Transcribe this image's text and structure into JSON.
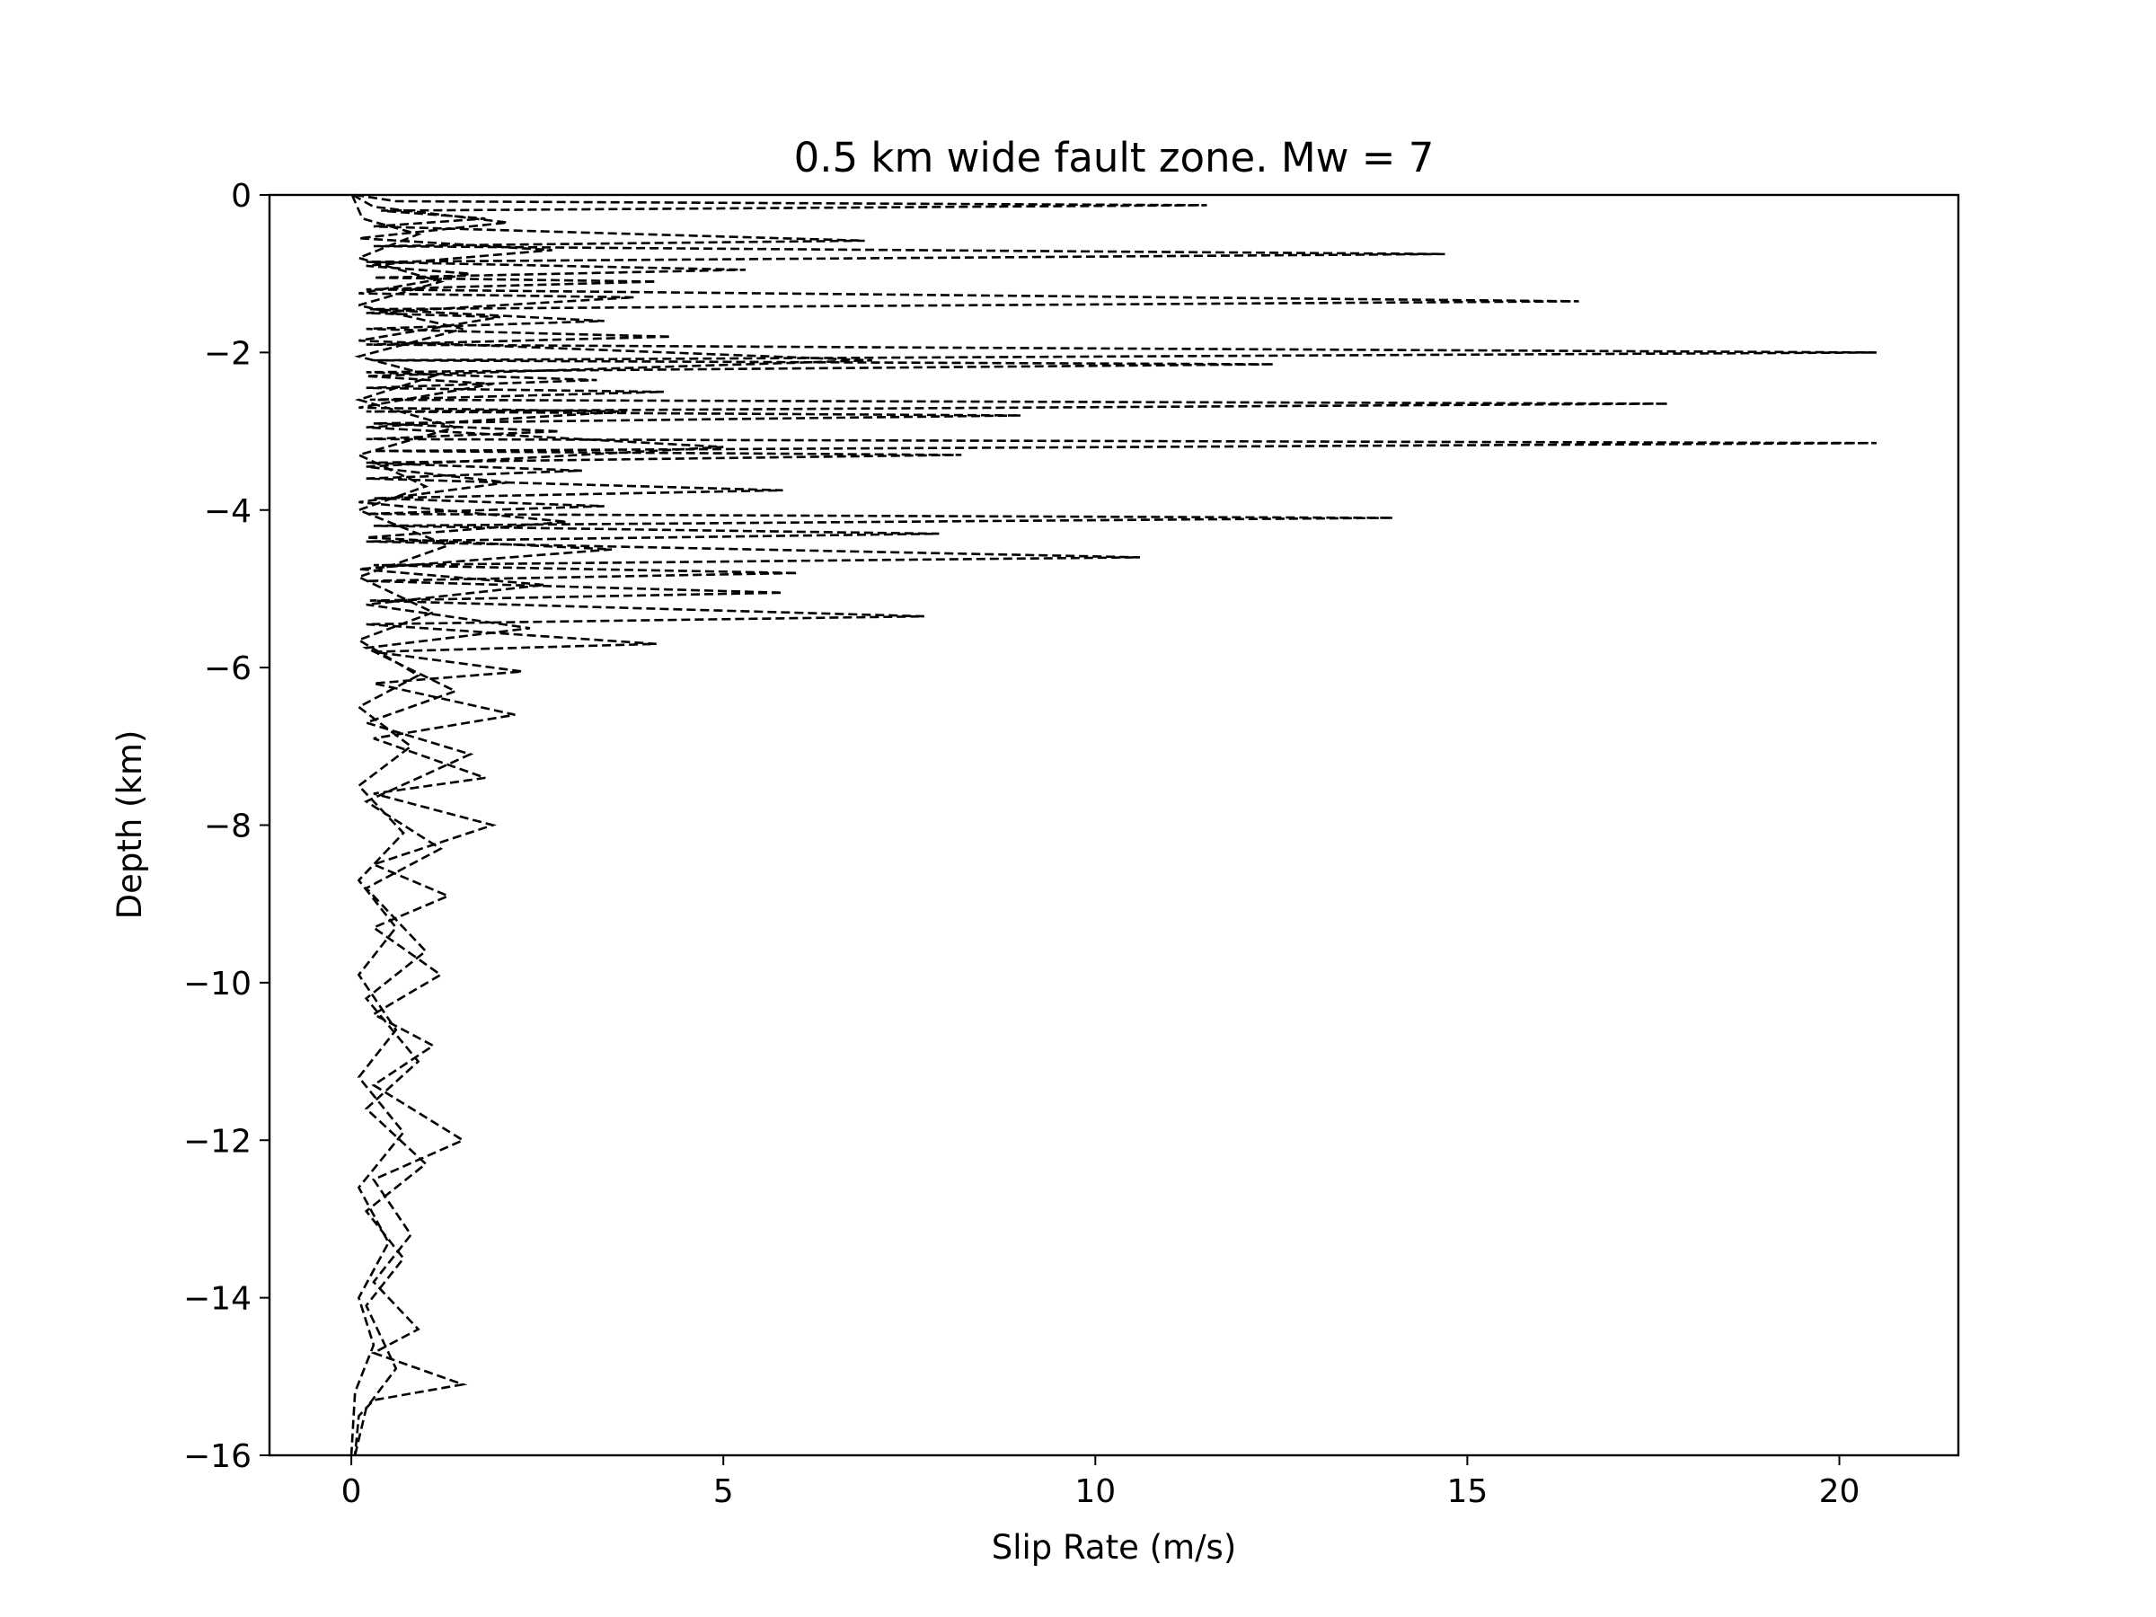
{
  "chart_data": {
    "type": "line",
    "title": "0.5 km wide fault zone. Mw = 7",
    "xlabel": "Slip Rate (m/s)",
    "ylabel": "Depth (km)",
    "xlim": [
      -1.1,
      21.6
    ],
    "ylim": [
      -16,
      0
    ],
    "xticks": [
      0,
      5,
      10,
      15,
      20
    ],
    "yticks": [
      0,
      -2,
      -4,
      -6,
      -8,
      -10,
      -12,
      -14,
      -16
    ],
    "grid": false,
    "legend": "none",
    "line_style": "dashed",
    "line_color": "#000000",
    "series_count_note": "",
    "series": [
      {
        "values": [
          [
            0.05,
            0
          ],
          [
            0.6,
            -0.08
          ],
          [
            11.5,
            -0.13
          ],
          [
            0.4,
            -0.2
          ],
          [
            1.8,
            -0.3
          ],
          [
            0.3,
            -0.4
          ],
          [
            6.9,
            -0.58
          ],
          [
            0.3,
            -0.65
          ],
          [
            14.7,
            -0.75
          ],
          [
            0.2,
            -0.85
          ],
          [
            5.3,
            -0.95
          ],
          [
            0.3,
            -1.05
          ],
          [
            4.1,
            -1.1
          ],
          [
            0.2,
            -1.2
          ],
          [
            16.5,
            -1.35
          ],
          [
            0.25,
            -1.45
          ],
          [
            3.4,
            -1.6
          ],
          [
            0.2,
            -1.7
          ],
          [
            4.3,
            -1.8
          ],
          [
            0.2,
            -1.9
          ],
          [
            20.5,
            -2.0
          ],
          [
            0.3,
            -2.1
          ],
          [
            12.4,
            -2.15
          ],
          [
            0.2,
            -2.25
          ],
          [
            3.3,
            -2.35
          ],
          [
            0.2,
            -2.45
          ],
          [
            4.2,
            -2.5
          ],
          [
            0.25,
            -2.6
          ],
          [
            17.7,
            -2.65
          ],
          [
            0.2,
            -2.75
          ],
          [
            9.0,
            -2.8
          ],
          [
            0.3,
            -2.9
          ],
          [
            2.8,
            -3.0
          ],
          [
            0.2,
            -3.1
          ],
          [
            20.5,
            -3.15
          ],
          [
            0.3,
            -3.25
          ],
          [
            8.2,
            -3.3
          ],
          [
            0.2,
            -3.4
          ],
          [
            3.1,
            -3.5
          ],
          [
            0.2,
            -3.6
          ],
          [
            5.8,
            -3.75
          ],
          [
            0.3,
            -3.85
          ],
          [
            3.4,
            -3.95
          ],
          [
            0.2,
            -4.05
          ],
          [
            14.0,
            -4.1
          ],
          [
            0.3,
            -4.2
          ],
          [
            7.9,
            -4.3
          ],
          [
            0.2,
            -4.4
          ],
          [
            10.6,
            -4.6
          ],
          [
            0.3,
            -4.7
          ],
          [
            6.0,
            -4.8
          ],
          [
            0.2,
            -4.9
          ],
          [
            5.8,
            -5.05
          ],
          [
            0.25,
            -5.15
          ],
          [
            7.7,
            -5.35
          ],
          [
            0.2,
            -5.45
          ],
          [
            4.1,
            -5.7
          ],
          [
            0.3,
            -5.8
          ],
          [
            2.3,
            -6.05
          ],
          [
            0.3,
            -6.2
          ],
          [
            2.2,
            -6.6
          ],
          [
            0.3,
            -6.9
          ],
          [
            1.8,
            -7.4
          ],
          [
            0.3,
            -7.6
          ],
          [
            1.9,
            -8.0
          ],
          [
            0.3,
            -8.5
          ],
          [
            1.3,
            -8.9
          ],
          [
            0.3,
            -9.3
          ],
          [
            1.2,
            -9.9
          ],
          [
            0.3,
            -10.4
          ],
          [
            1.1,
            -10.8
          ],
          [
            0.3,
            -11.3
          ],
          [
            1.5,
            -12.0
          ],
          [
            0.3,
            -12.5
          ],
          [
            0.8,
            -13.2
          ],
          [
            0.3,
            -13.8
          ],
          [
            0.9,
            -14.4
          ],
          [
            0.3,
            -14.7
          ],
          [
            1.5,
            -15.1
          ],
          [
            0.3,
            -15.3
          ],
          [
            0.1,
            -15.5
          ],
          [
            0.05,
            -16
          ]
        ]
      },
      {
        "values": [
          [
            0.02,
            0
          ],
          [
            0.3,
            -0.15
          ],
          [
            2.1,
            -0.35
          ],
          [
            0.1,
            -0.55
          ],
          [
            2.7,
            -0.7
          ],
          [
            0.2,
            -0.9
          ],
          [
            1.6,
            -1.0
          ],
          [
            0.1,
            -1.25
          ],
          [
            3.8,
            -1.3
          ],
          [
            0.2,
            -1.5
          ],
          [
            2.0,
            -1.55
          ],
          [
            0.1,
            -1.85
          ],
          [
            7.0,
            -2.1
          ],
          [
            0.2,
            -2.3
          ],
          [
            1.9,
            -2.4
          ],
          [
            0.1,
            -2.7
          ],
          [
            3.7,
            -2.75
          ],
          [
            0.2,
            -2.95
          ],
          [
            5.0,
            -3.2
          ],
          [
            0.2,
            -3.45
          ],
          [
            2.1,
            -3.65
          ],
          [
            0.1,
            -3.9
          ],
          [
            2.9,
            -4.15
          ],
          [
            0.2,
            -4.35
          ],
          [
            3.5,
            -4.5
          ],
          [
            0.1,
            -4.75
          ],
          [
            2.6,
            -4.95
          ],
          [
            0.2,
            -5.2
          ],
          [
            2.4,
            -5.5
          ],
          [
            0.2,
            -5.75
          ],
          [
            1.4,
            -6.3
          ],
          [
            0.2,
            -6.7
          ],
          [
            1.6,
            -7.1
          ],
          [
            0.2,
            -7.7
          ],
          [
            1.2,
            -8.3
          ],
          [
            0.2,
            -8.8
          ],
          [
            1.0,
            -9.6
          ],
          [
            0.2,
            -10.2
          ],
          [
            0.9,
            -11.0
          ],
          [
            0.2,
            -11.6
          ],
          [
            1.0,
            -12.3
          ],
          [
            0.2,
            -12.9
          ],
          [
            0.7,
            -13.5
          ],
          [
            0.2,
            -14.1
          ],
          [
            0.6,
            -14.9
          ],
          [
            0.2,
            -15.4
          ],
          [
            0.05,
            -16
          ]
        ]
      },
      {
        "values": [
          [
            0.01,
            0
          ],
          [
            0.15,
            -0.3
          ],
          [
            0.9,
            -0.5
          ],
          [
            0.1,
            -0.8
          ],
          [
            1.2,
            -1.1
          ],
          [
            0.1,
            -1.4
          ],
          [
            1.5,
            -1.7
          ],
          [
            0.1,
            -2.05
          ],
          [
            1.1,
            -2.3
          ],
          [
            0.1,
            -2.6
          ],
          [
            1.4,
            -2.95
          ],
          [
            0.1,
            -3.3
          ],
          [
            1.0,
            -3.7
          ],
          [
            0.1,
            -4.0
          ],
          [
            1.3,
            -4.45
          ],
          [
            0.1,
            -4.85
          ],
          [
            1.1,
            -5.3
          ],
          [
            0.1,
            -5.65
          ],
          [
            0.9,
            -6.1
          ],
          [
            0.1,
            -6.5
          ],
          [
            0.8,
            -7.0
          ],
          [
            0.1,
            -7.5
          ],
          [
            0.7,
            -8.1
          ],
          [
            0.1,
            -8.7
          ],
          [
            0.6,
            -9.3
          ],
          [
            0.1,
            -9.9
          ],
          [
            0.6,
            -10.6
          ],
          [
            0.1,
            -11.2
          ],
          [
            0.7,
            -11.9
          ],
          [
            0.1,
            -12.6
          ],
          [
            0.5,
            -13.3
          ],
          [
            0.1,
            -14.0
          ],
          [
            0.3,
            -14.6
          ],
          [
            0.05,
            -15.2
          ],
          [
            0.0,
            -16
          ]
        ]
      }
    ]
  }
}
